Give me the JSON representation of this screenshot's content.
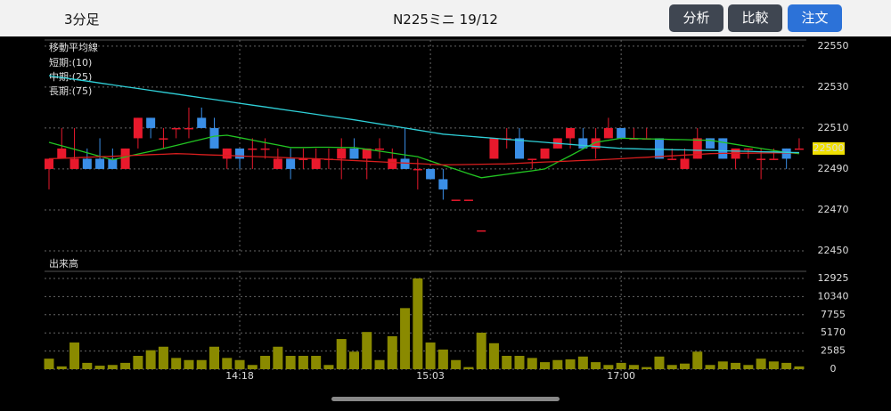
{
  "header": {
    "interval": "3分足",
    "title": "N225ミニ 19/12",
    "buttons": [
      "分析",
      "比較",
      "注文"
    ]
  },
  "chart_data": [
    {
      "type": "candlestick",
      "legend_title": "移動平均線",
      "up_color": "#e8192c",
      "down_color": "#3a8ee6",
      "candles": {
        "open": [
          22490,
          22495,
          22490,
          22495,
          22495,
          22495,
          22490,
          22505,
          22515,
          22505,
          22510,
          22510,
          22515,
          22510,
          22495,
          22500,
          22500,
          22500,
          22490,
          22495,
          22495,
          22490,
          22495,
          22495,
          22500,
          22495,
          22500,
          22490,
          22495,
          22490,
          22490,
          22485,
          22475,
          22475,
          22460,
          22495,
          22505,
          22505,
          22495,
          22495,
          22500,
          22505,
          22505,
          22500,
          22505,
          22510,
          22505,
          22505,
          22505,
          22495,
          22490,
          22495,
          22505,
          22505,
          22495,
          22500,
          22495,
          22495,
          22500,
          22500
        ],
        "high": [
          22495,
          22510,
          22510,
          22500,
          22505,
          22500,
          22500,
          22515,
          22515,
          22510,
          22510,
          22520,
          22520,
          22515,
          22500,
          22500,
          22505,
          22505,
          22500,
          22500,
          22500,
          22500,
          22500,
          22505,
          22505,
          22500,
          22505,
          22500,
          22510,
          22495,
          22490,
          22490,
          22475,
          22475,
          22460,
          22505,
          22510,
          22510,
          22495,
          22500,
          22505,
          22510,
          22510,
          22510,
          22515,
          22510,
          22510,
          22510,
          22505,
          22500,
          22500,
          22510,
          22505,
          22505,
          22500,
          22500,
          22500,
          22500,
          22500,
          22505
        ],
        "low": [
          22480,
          22495,
          22490,
          22490,
          22490,
          22490,
          22490,
          22500,
          22505,
          22500,
          22505,
          22505,
          22510,
          22500,
          22490,
          22490,
          22490,
          22495,
          22490,
          22485,
          22490,
          22490,
          22490,
          22485,
          22495,
          22485,
          22495,
          22490,
          22490,
          22480,
          22485,
          22475,
          22475,
          22475,
          22460,
          22495,
          22500,
          22495,
          22490,
          22495,
          22500,
          22500,
          22500,
          22495,
          22505,
          22505,
          22505,
          22505,
          22495,
          22495,
          22490,
          22495,
          22500,
          22495,
          22490,
          22495,
          22485,
          22495,
          22490,
          22500
        ],
        "close": [
          22495,
          22500,
          22495,
          22490,
          22490,
          22490,
          22500,
          22515,
          22510,
          22505,
          22510,
          22510,
          22510,
          22500,
          22500,
          22495,
          22500,
          22500,
          22495,
          22490,
          22495,
          22495,
          22495,
          22500,
          22495,
          22500,
          22500,
          22495,
          22490,
          22490,
          22485,
          22480,
          22475,
          22475,
          22460,
          22505,
          22505,
          22495,
          22495,
          22500,
          22505,
          22510,
          22500,
          22505,
          22510,
          22505,
          22505,
          22505,
          22495,
          22495,
          22495,
          22505,
          22500,
          22495,
          22500,
          22500,
          22495,
          22495,
          22495,
          22500
        ]
      },
      "series": [
        {
          "name": "短期:(10)",
          "color": "#22c422",
          "values": [
            22503.0,
            22501.3,
            22499.6,
            22497.9,
            22496.2,
            22494.5,
            22495.9,
            22497.3,
            22498.6,
            22500.0,
            22501.5,
            22503.0,
            22504.5,
            22506.0,
            22506.5,
            22505.3,
            22504.1,
            22502.9,
            22501.7,
            22500.5,
            22500.5,
            22500.6,
            22500.6,
            22500.5,
            22500.5,
            22499.6,
            22498.7,
            22497.8,
            22496.9,
            22496.0,
            22493.9,
            22491.8,
            22489.8,
            22487.7,
            22485.7,
            22486.6,
            22487.4,
            22488.3,
            22489.1,
            22490.0,
            22493.3,
            22496.5,
            22499.8,
            22503.0,
            22504.0,
            22505.0,
            22504.9,
            22504.7,
            22504.6,
            22504.4,
            22504.3,
            22504.1,
            22504.0,
            22503.0,
            22502.0,
            22501.0,
            22500.0,
            22499.0,
            22498.0,
            22497.5
          ]
        },
        {
          "name": "中期:(25)",
          "color": "#d81e1e",
          "values": [
            22495.0,
            22495.2,
            22495.5,
            22495.7,
            22496.0,
            22496.2,
            22496.5,
            22496.7,
            22497.0,
            22497.2,
            22497.5,
            22497.3,
            22497.0,
            22496.8,
            22496.6,
            22496.3,
            22496.1,
            22495.9,
            22495.7,
            22495.4,
            22495.2,
            22495.0,
            22494.7,
            22494.4,
            22494.1,
            22493.8,
            22493.5,
            22493.2,
            22492.9,
            22492.6,
            22492.3,
            22492.0,
            22492.1,
            22492.2,
            22492.3,
            22492.4,
            22492.5,
            22492.8,
            22493.1,
            22493.4,
            22493.6,
            22493.9,
            22494.2,
            22494.4,
            22494.7,
            22495.0,
            22495.4,
            22495.7,
            22496.1,
            22496.4,
            22496.8,
            22497.1,
            22497.5,
            22497.6,
            22497.6,
            22497.7,
            22497.8,
            22497.9,
            22497.9,
            22498.0
          ]
        },
        {
          "name": "長期:(75)",
          "color": "#2fd0d8",
          "values": [
            22535.6,
            22534.7,
            22533.8,
            22532.9,
            22532.0,
            22531.1,
            22530.2,
            22529.3,
            22528.4,
            22527.5,
            22526.6,
            22525.7,
            22524.8,
            22523.9,
            22523.0,
            22522.1,
            22521.2,
            22520.3,
            22519.4,
            22518.5,
            22517.6,
            22516.7,
            22515.8,
            22514.9,
            22514.0,
            22513.0,
            22512.0,
            22511.0,
            22510.0,
            22509.0,
            22508.0,
            22507.0,
            22506.5,
            22506.0,
            22505.5,
            22505.0,
            22504.5,
            22504.0,
            22503.5,
            22503.0,
            22502.5,
            22502.0,
            22501.5,
            22501.0,
            22500.5,
            22500.0,
            22499.9,
            22499.7,
            22499.6,
            22499.4,
            22499.3,
            22499.1,
            22499.0,
            22498.9,
            22498.7,
            22498.6,
            22498.4,
            22498.3,
            22498.1,
            22498.0
          ]
        }
      ],
      "ylim": [
        22446.5,
        22553
      ],
      "yticks": [
        22450,
        22470,
        22490,
        22510,
        22530,
        22550
      ],
      "grid": true
    },
    {
      "type": "bar",
      "title": "出来高",
      "color": "#8a8a00",
      "categories": [
        null,
        null,
        null,
        null,
        null,
        null,
        null,
        null,
        null,
        null,
        null,
        null,
        null,
        null,
        null,
        "14:18",
        null,
        null,
        null,
        null,
        null,
        null,
        null,
        null,
        null,
        null,
        null,
        null,
        null,
        null,
        "15:03",
        null,
        null,
        null,
        null,
        null,
        null,
        null,
        null,
        null,
        null,
        null,
        null,
        null,
        null,
        "17:00",
        null,
        null,
        null,
        null,
        null,
        null,
        null,
        null,
        null,
        null,
        null,
        null,
        null,
        null
      ],
      "values": [
        1500,
        400,
        3800,
        900,
        500,
        600,
        900,
        1900,
        2700,
        3200,
        1600,
        1300,
        1300,
        3200,
        1600,
        1300,
        600,
        1900,
        3200,
        1900,
        1900,
        1900,
        600,
        4300,
        2500,
        5300,
        1300,
        4700,
        8700,
        12925,
        3800,
        2800,
        1300,
        300,
        5200,
        3700,
        1900,
        1900,
        1600,
        1000,
        1300,
        1400,
        1800,
        1000,
        600,
        900,
        600,
        300,
        1800,
        600,
        800,
        2500,
        600,
        1100,
        900,
        600,
        1500,
        1100,
        900,
        400
      ],
      "ylim": [
        0,
        13940
      ],
      "yticks": [
        0,
        2585,
        5170,
        7755,
        10340,
        12925
      ],
      "grid": true
    }
  ]
}
